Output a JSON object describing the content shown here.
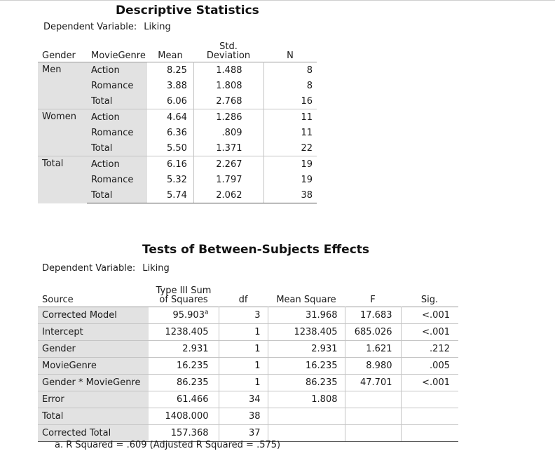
{
  "descriptive": {
    "title": "Descriptive Statistics",
    "dep_label": "Dependent Variable:",
    "dep_value": "Liking",
    "headers": {
      "gender": "Gender",
      "genre": "MovieGenre",
      "mean": "Mean",
      "sd_line1": "Std.",
      "sd_line2": "Deviation",
      "n": "N"
    },
    "groups": [
      {
        "gender": "Men",
        "rows": [
          {
            "genre": "Action",
            "mean": "8.25",
            "sd": "1.488",
            "n": "8"
          },
          {
            "genre": "Romance",
            "mean": "3.88",
            "sd": "1.808",
            "n": "8"
          },
          {
            "genre": "Total",
            "mean": "6.06",
            "sd": "2.768",
            "n": "16"
          }
        ]
      },
      {
        "gender": "Women",
        "rows": [
          {
            "genre": "Action",
            "mean": "4.64",
            "sd": "1.286",
            "n": "11"
          },
          {
            "genre": "Romance",
            "mean": "6.36",
            "sd": ".809",
            "n": "11"
          },
          {
            "genre": "Total",
            "mean": "5.50",
            "sd": "1.371",
            "n": "22"
          }
        ]
      },
      {
        "gender": "Total",
        "rows": [
          {
            "genre": "Action",
            "mean": "6.16",
            "sd": "2.267",
            "n": "19"
          },
          {
            "genre": "Romance",
            "mean": "5.32",
            "sd": "1.797",
            "n": "19"
          },
          {
            "genre": "Total",
            "mean": "5.74",
            "sd": "2.062",
            "n": "38"
          }
        ]
      }
    ]
  },
  "tests": {
    "title": "Tests of Between-Subjects Effects",
    "dep_label": "Dependent Variable:",
    "dep_value": "Liking",
    "headers": {
      "source": "Source",
      "ss_line1": "Type III Sum",
      "ss_line2": "of Squares",
      "df": "df",
      "ms": "Mean Square",
      "f": "F",
      "sig": "Sig."
    },
    "rows": [
      {
        "source": "Corrected Model",
        "ss": "95.903",
        "ss_sup": "a",
        "df": "3",
        "ms": "31.968",
        "f": "17.683",
        "sig": "<.001"
      },
      {
        "source": "Intercept",
        "ss": "1238.405",
        "df": "1",
        "ms": "1238.405",
        "f": "685.026",
        "sig": "<.001"
      },
      {
        "source": "Gender",
        "ss": "2.931",
        "df": "1",
        "ms": "2.931",
        "f": "1.621",
        "sig": ".212"
      },
      {
        "source": "MovieGenre",
        "ss": "16.235",
        "df": "1",
        "ms": "16.235",
        "f": "8.980",
        "sig": ".005"
      },
      {
        "source": "Gender * MovieGenre",
        "ss": "86.235",
        "df": "1",
        "ms": "86.235",
        "f": "47.701",
        "sig": "<.001"
      },
      {
        "source": "Error",
        "ss": "61.466",
        "df": "34",
        "ms": "1.808",
        "f": "",
        "sig": ""
      },
      {
        "source": "Total",
        "ss": "1408.000",
        "df": "38",
        "ms": "",
        "f": "",
        "sig": ""
      },
      {
        "source": "Corrected Total",
        "ss": "157.368",
        "df": "37",
        "ms": "",
        "f": "",
        "sig": ""
      }
    ],
    "footnote": "a. R Squared = .609 (Adjusted R Squared = .575)"
  }
}
